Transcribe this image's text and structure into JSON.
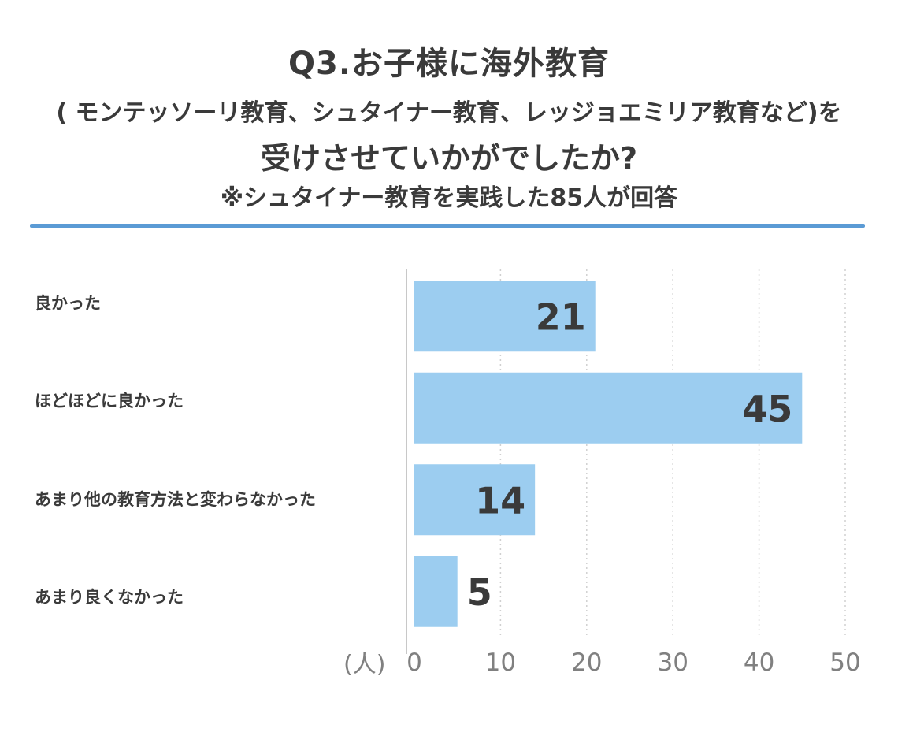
{
  "title": {
    "line1": "Q3.お子様に海外教育",
    "line2": "( モンテッソーリ教育、シュタイナー教育、レッジョエミリア教育など)を",
    "line3": "受けさせていかがでしたか?",
    "line4": "※シュタイナー教育を実践した85人が回答"
  },
  "colors": {
    "bar": "#9ccdf0",
    "rule": "#5b9bd5",
    "grid": "#d0d0d0",
    "text": "#3a3a3a",
    "tick": "#808080"
  },
  "chart_data": {
    "type": "bar",
    "orientation": "horizontal",
    "categories": [
      "良かった",
      "ほどほどに良かった",
      "あまり他の教育方法と変わらなかった",
      "あまり良くなかった"
    ],
    "values": [
      21,
      45,
      14,
      5
    ],
    "xlabel": "(人)",
    "xlim": [
      0,
      50
    ],
    "xticks": [
      "0",
      "10",
      "20",
      "30",
      "40",
      "50"
    ],
    "grid": true
  }
}
